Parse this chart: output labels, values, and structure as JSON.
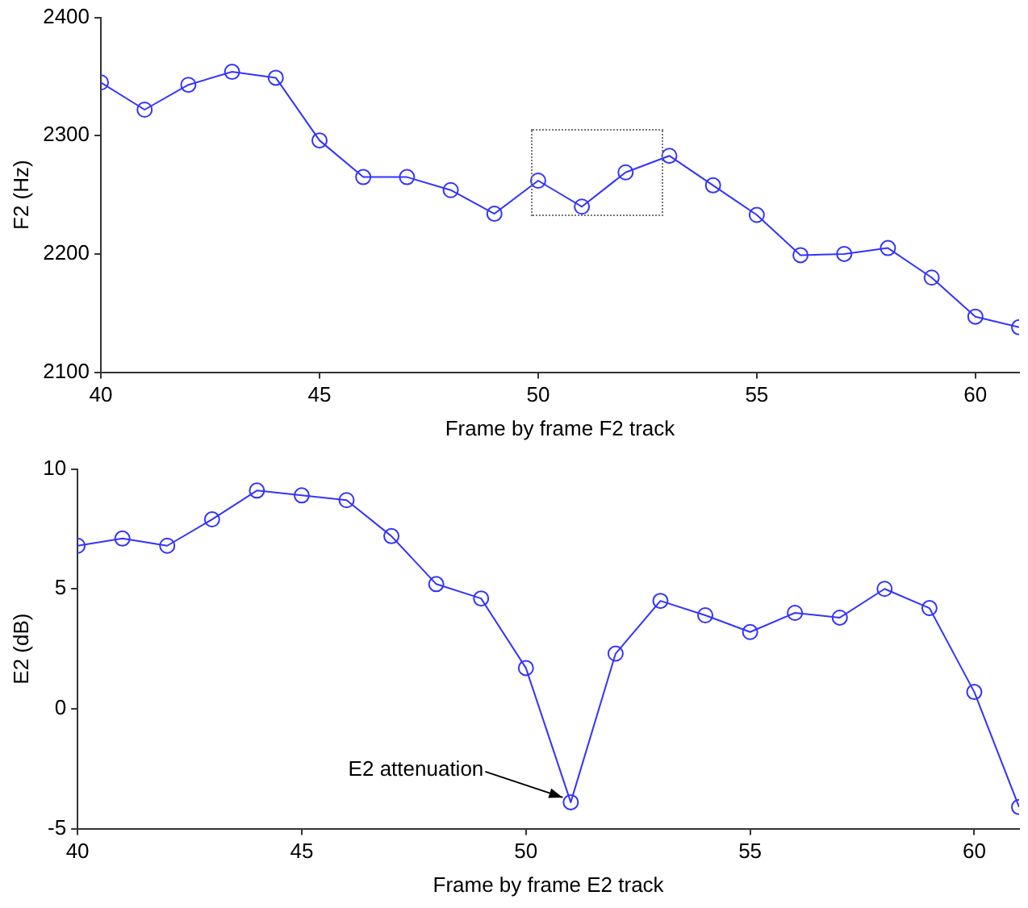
{
  "chart_data": [
    {
      "type": "line",
      "x": [
        40,
        41,
        42,
        43,
        44,
        45,
        46,
        47,
        48,
        49,
        50,
        51,
        52,
        53,
        54,
        55,
        56,
        57,
        58,
        59,
        60,
        61
      ],
      "xlabel": "Frame by frame F2 track",
      "ylabel": "F2 (Hz)",
      "xlim": [
        40,
        61
      ],
      "xticks": [
        40,
        45,
        50,
        55,
        60
      ],
      "ylim": [
        2100,
        2400
      ],
      "yticks": [
        2100,
        2200,
        2300,
        2400
      ],
      "marker": "circle",
      "series": [
        {
          "color": "#3333ff",
          "values": [
            2345,
            2322,
            2343,
            2354,
            2349,
            2296,
            2265,
            2265,
            2254,
            2234,
            2262,
            2240,
            2269,
            2283,
            2258,
            2233,
            2199,
            2200,
            2205,
            2180,
            2147,
            2138
          ]
        }
      ]
    },
    {
      "type": "line",
      "x": [
        40,
        41,
        42,
        43,
        44,
        45,
        46,
        47,
        48,
        49,
        50,
        51,
        52,
        53,
        54,
        55,
        56,
        57,
        58,
        59,
        60,
        61
      ],
      "xlabel": "Frame by frame E2 track",
      "ylabel": "E2 (dB)",
      "xlim": [
        40,
        61
      ],
      "xticks": [
        40,
        45,
        50,
        55,
        60
      ],
      "ylim": [
        -5,
        10
      ],
      "yticks": [
        -5,
        0,
        5,
        10
      ],
      "marker": "circle",
      "series": [
        {
          "color": "#3333ff",
          "values": [
            6.8,
            7.1,
            6.8,
            7.9,
            9.1,
            8.9,
            8.7,
            7.2,
            5.2,
            4.6,
            1.7,
            -3.9,
            2.3,
            4.5,
            3.9,
            3.2,
            4.0,
            3.8,
            5.0,
            4.2,
            0.7,
            -4.1
          ]
        }
      ],
      "annotations": [
        {
          "text": "E2 attenuation",
          "x": 51,
          "y": -3.9
        }
      ]
    }
  ]
}
